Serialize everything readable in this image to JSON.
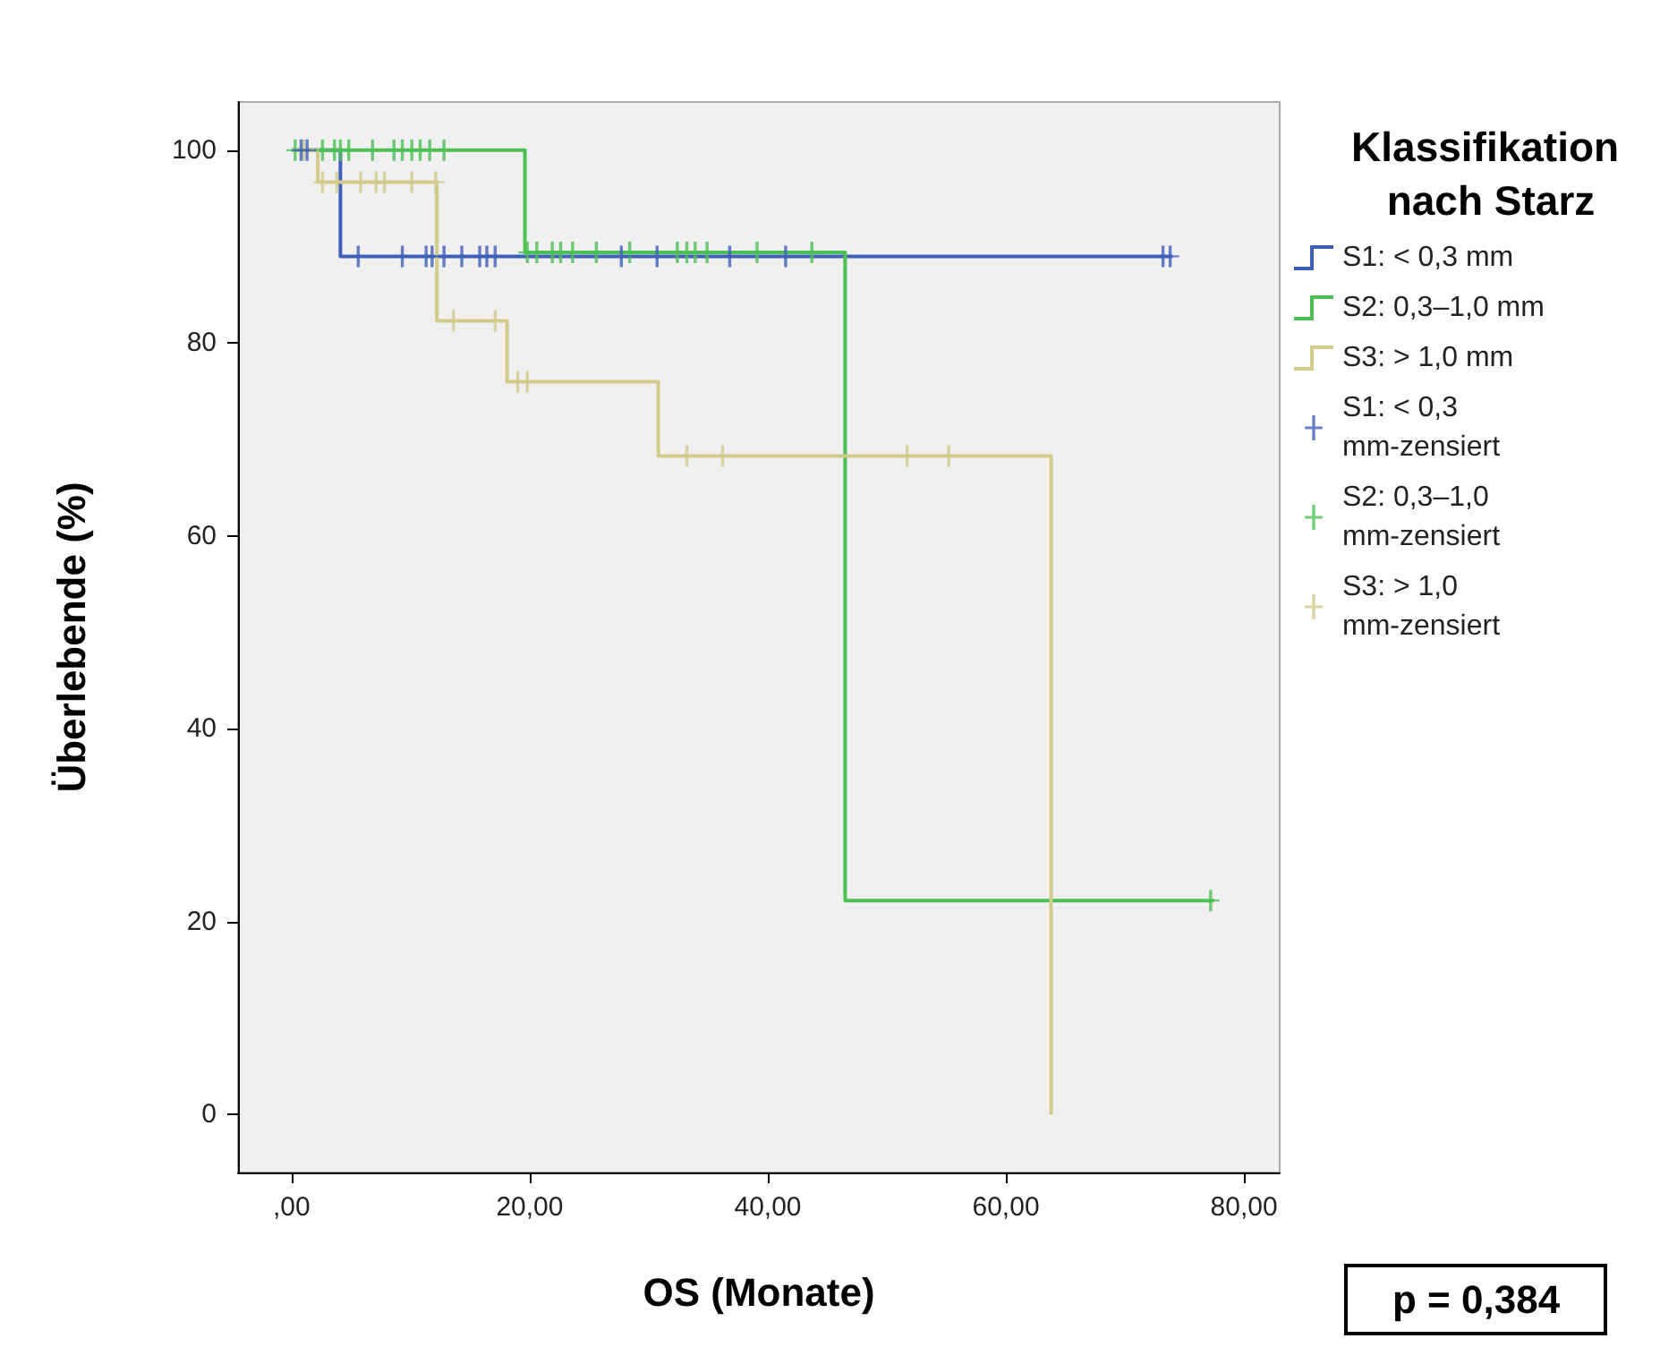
{
  "chart_data": {
    "type": "step",
    "xlabel": "OS (Monate)",
    "ylabel": "Überlebende (%)",
    "legend_title": "Klassifikation nach Starz",
    "annotations": [
      "p = 0,384"
    ],
    "xlim": [
      -4.5,
      83
    ],
    "ylim": [
      -6,
      105
    ],
    "xticks": [
      {
        "value": 0,
        "label": ",00"
      },
      {
        "value": 20,
        "label": "20,00"
      },
      {
        "value": 40,
        "label": "40,00"
      },
      {
        "value": 60,
        "label": "60,00"
      },
      {
        "value": 80,
        "label": "80,00"
      }
    ],
    "yticks": [
      0,
      20,
      40,
      60,
      80,
      100
    ],
    "grid": false,
    "legend": "right",
    "series": [
      {
        "name": "S1: < 0,3 mm",
        "marker": "none",
        "color": "#4060b8",
        "x": [
          0,
          4.1,
          74
        ],
        "values": [
          100,
          89,
          89
        ]
      },
      {
        "name": "S2: 0,3–1,0 mm",
        "marker": "none",
        "color": "#4cbf55",
        "x": [
          0,
          19.6,
          46.5,
          77.5
        ],
        "values": [
          100,
          89.4,
          22.2,
          22.2
        ]
      },
      {
        "name": "S3: > 1,0 mm",
        "marker": "none",
        "color": "#d2cb8c",
        "x": [
          0,
          2.2,
          12.2,
          18.1,
          30.8,
          63.8,
          63.8
        ],
        "values": [
          100,
          96.7,
          82.3,
          76,
          68.3,
          0,
          0
        ]
      },
      {
        "name": "S1: < 0,3 mm-zensiert",
        "type": "scatter",
        "marker": "cross",
        "color": "#4060b8",
        "x": [
          0.8,
          1.3,
          5.6,
          9.3,
          11.3,
          11.8,
          12.8,
          14.3,
          15.8,
          16.4,
          17.1,
          27.7,
          30.7,
          36.8,
          41.5,
          73.2,
          73.8
        ],
        "values": [
          100,
          100,
          89,
          89,
          89,
          89,
          89,
          89,
          89,
          89,
          89,
          89,
          89,
          89,
          89,
          89,
          89
        ]
      },
      {
        "name": "S2: 0,3–1,0 mm-zensiert",
        "type": "scatter",
        "marker": "cross",
        "color": "#4cbf55",
        "x": [
          0.3,
          2.6,
          3.6,
          4.1,
          4.8,
          6.8,
          8.6,
          9.3,
          10.1,
          10.8,
          11.6,
          12.8,
          19.8,
          20.6,
          21.9,
          22.6,
          23.6,
          25.6,
          28.4,
          32.4,
          33.2,
          33.9,
          34.9,
          39.1,
          43.7,
          77.2
        ],
        "values": [
          100,
          100,
          100,
          100,
          100,
          100,
          100,
          100,
          100,
          100,
          100,
          100,
          89.4,
          89.4,
          89.4,
          89.4,
          89.4,
          89.4,
          89.4,
          89.4,
          89.4,
          89.4,
          89.4,
          89.4,
          89.4,
          22.2
        ]
      },
      {
        "name": "S3: > 1,0 mm-zensiert",
        "type": "scatter",
        "marker": "cross",
        "color": "#d2cb8c",
        "x": [
          1.0,
          2.6,
          3.8,
          5.8,
          7.1,
          7.8,
          10.1,
          12.1,
          13.6,
          17.1,
          19.0,
          19.8,
          33.2,
          36.2,
          51.7,
          55.2
        ],
        "values": [
          100,
          96.7,
          96.7,
          96.7,
          96.7,
          96.7,
          96.7,
          96.7,
          82.3,
          82.3,
          76,
          76,
          68.3,
          68.3,
          68.3,
          68.3
        ]
      }
    ]
  }
}
